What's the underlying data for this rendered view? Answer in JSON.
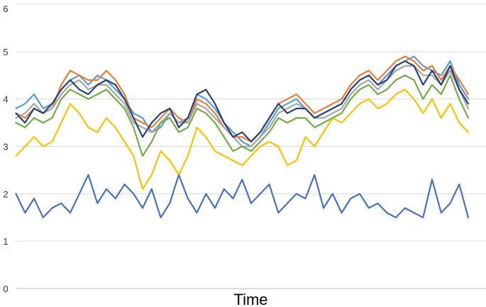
{
  "chart_data": {
    "type": "line",
    "title": "",
    "xlabel": "Time",
    "ylabel": "",
    "ylim": [
      0,
      6
    ],
    "yticks": [
      0,
      1,
      2,
      3,
      4,
      5,
      6
    ],
    "grid": true,
    "legend": "none",
    "x_range": [
      0,
      100
    ],
    "series": [
      {
        "color": "#5b9bd5",
        "x": [
          0,
          2,
          4,
          6,
          8,
          10,
          12,
          14,
          16,
          18,
          20,
          22,
          24,
          26,
          28,
          30,
          32,
          34,
          36,
          38,
          40,
          42,
          44,
          46,
          48,
          50,
          52,
          54,
          56,
          58,
          60,
          62,
          64,
          66,
          68,
          70,
          72,
          74,
          76,
          78,
          80,
          82,
          84,
          86,
          88,
          90,
          92,
          94,
          96,
          98,
          100
        ],
        "values": [
          3.8,
          3.9,
          4.1,
          3.8,
          3.9,
          4.2,
          4.4,
          4.5,
          4.3,
          4.5,
          4.4,
          4.2,
          4.0,
          3.7,
          3.6,
          3.3,
          3.4,
          3.7,
          3.5,
          3.6,
          4.1,
          4.0,
          3.8,
          3.5,
          3.3,
          3.1,
          3.0,
          3.2,
          3.5,
          3.8,
          3.9,
          4.0,
          3.8,
          3.6,
          3.7,
          3.8,
          3.9,
          4.2,
          4.4,
          4.5,
          4.3,
          4.5,
          4.7,
          4.8,
          4.9,
          4.7,
          4.6,
          4.5,
          4.8,
          4.3,
          4.0
        ]
      },
      {
        "color": "#ed7d31",
        "x": [
          0,
          2,
          4,
          6,
          8,
          10,
          12,
          14,
          16,
          18,
          20,
          22,
          24,
          26,
          28,
          30,
          32,
          34,
          36,
          38,
          40,
          42,
          44,
          46,
          48,
          50,
          52,
          54,
          56,
          58,
          60,
          62,
          64,
          66,
          68,
          70,
          72,
          74,
          76,
          78,
          80,
          82,
          84,
          86,
          88,
          90,
          92,
          94,
          96,
          98,
          100
        ],
        "values": [
          3.7,
          3.6,
          3.8,
          3.7,
          3.8,
          4.3,
          4.6,
          4.5,
          4.4,
          4.4,
          4.6,
          4.4,
          4.1,
          3.6,
          3.5,
          3.4,
          3.6,
          3.8,
          3.6,
          3.5,
          4.0,
          3.9,
          3.7,
          3.4,
          3.2,
          3.2,
          3.1,
          3.3,
          3.6,
          3.9,
          4.0,
          4.1,
          3.9,
          3.7,
          3.8,
          3.9,
          4.0,
          4.3,
          4.5,
          4.6,
          4.4,
          4.6,
          4.8,
          4.9,
          4.8,
          4.6,
          4.7,
          4.4,
          4.7,
          4.4,
          4.1
        ]
      },
      {
        "color": "#a5a5a5",
        "x": [
          0,
          2,
          4,
          6,
          8,
          10,
          12,
          14,
          16,
          18,
          20,
          22,
          24,
          26,
          28,
          30,
          32,
          34,
          36,
          38,
          40,
          42,
          44,
          46,
          48,
          50,
          52,
          54,
          56,
          58,
          60,
          62,
          64,
          66,
          68,
          70,
          72,
          74,
          76,
          78,
          80,
          82,
          84,
          86,
          88,
          90,
          92,
          94,
          96,
          98,
          100
        ],
        "values": [
          3.6,
          3.7,
          3.9,
          3.7,
          3.8,
          4.1,
          4.3,
          4.4,
          4.2,
          4.3,
          4.3,
          4.1,
          3.9,
          3.5,
          3.4,
          3.3,
          3.5,
          3.7,
          3.5,
          3.5,
          3.9,
          3.8,
          3.6,
          3.4,
          3.2,
          3.0,
          3.0,
          3.2,
          3.4,
          3.7,
          3.8,
          3.9,
          3.8,
          3.6,
          3.6,
          3.7,
          3.8,
          4.1,
          4.3,
          4.4,
          4.2,
          4.4,
          4.6,
          4.7,
          4.7,
          4.5,
          4.5,
          4.3,
          4.6,
          4.2,
          3.8
        ]
      },
      {
        "color": "#ffc000",
        "x": [
          0,
          2,
          4,
          6,
          8,
          10,
          12,
          14,
          16,
          18,
          20,
          22,
          24,
          26,
          28,
          30,
          32,
          34,
          36,
          38,
          40,
          42,
          44,
          46,
          48,
          50,
          52,
          54,
          56,
          58,
          60,
          62,
          64,
          66,
          68,
          70,
          72,
          74,
          76,
          78,
          80,
          82,
          84,
          86,
          88,
          90,
          92,
          94,
          96,
          98,
          100
        ],
        "values": [
          2.8,
          3.0,
          3.2,
          3.0,
          3.1,
          3.5,
          3.9,
          3.7,
          3.4,
          3.3,
          3.6,
          3.4,
          3.1,
          2.8,
          2.1,
          2.4,
          2.9,
          2.7,
          2.4,
          2.8,
          3.4,
          3.2,
          2.9,
          2.8,
          2.7,
          2.6,
          2.8,
          3.0,
          3.1,
          3.0,
          2.6,
          2.7,
          3.2,
          3.0,
          3.3,
          3.6,
          3.5,
          3.7,
          3.9,
          4.0,
          3.8,
          3.9,
          4.1,
          4.2,
          4.0,
          3.7,
          4.0,
          3.6,
          3.9,
          3.5,
          3.3
        ]
      },
      {
        "color": "#4472c4",
        "x": [
          0,
          2,
          4,
          6,
          8,
          10,
          12,
          14,
          16,
          18,
          20,
          22,
          24,
          26,
          28,
          30,
          32,
          34,
          36,
          38,
          40,
          42,
          44,
          46,
          48,
          50,
          52,
          54,
          56,
          58,
          60,
          62,
          64,
          66,
          68,
          70,
          72,
          74,
          76,
          78,
          80,
          82,
          84,
          86,
          88,
          90,
          92,
          94,
          96,
          98,
          100
        ],
        "values": [
          2.0,
          1.6,
          1.9,
          1.5,
          1.7,
          1.8,
          1.6,
          2.0,
          2.4,
          1.8,
          2.1,
          1.9,
          2.2,
          2.0,
          1.7,
          2.1,
          1.5,
          1.8,
          2.4,
          1.9,
          1.6,
          2.0,
          1.7,
          2.1,
          1.9,
          2.3,
          1.8,
          2.0,
          2.2,
          1.6,
          1.8,
          2.0,
          1.9,
          2.4,
          1.7,
          2.0,
          1.6,
          1.9,
          2.0,
          1.7,
          1.8,
          1.6,
          1.5,
          1.7,
          1.6,
          1.5,
          2.3,
          1.6,
          1.8,
          2.2,
          1.5
        ]
      },
      {
        "color": "#70ad47",
        "x": [
          0,
          2,
          4,
          6,
          8,
          10,
          12,
          14,
          16,
          18,
          20,
          22,
          24,
          26,
          28,
          30,
          32,
          34,
          36,
          38,
          40,
          42,
          44,
          46,
          48,
          50,
          52,
          54,
          56,
          58,
          60,
          62,
          64,
          66,
          68,
          70,
          72,
          74,
          76,
          78,
          80,
          82,
          84,
          86,
          88,
          90,
          92,
          94,
          96,
          98,
          100
        ],
        "values": [
          3.5,
          3.4,
          3.6,
          3.5,
          3.6,
          4.0,
          4.2,
          4.1,
          4.0,
          4.1,
          4.2,
          4.0,
          3.8,
          3.4,
          2.8,
          3.1,
          3.5,
          3.6,
          3.3,
          3.4,
          3.8,
          3.7,
          3.5,
          3.2,
          2.9,
          3.0,
          2.9,
          3.1,
          3.3,
          3.6,
          3.5,
          3.6,
          3.6,
          3.4,
          3.5,
          3.6,
          3.7,
          4.0,
          4.2,
          4.3,
          4.1,
          4.2,
          4.4,
          4.5,
          4.4,
          4.0,
          4.3,
          4.1,
          4.5,
          4.0,
          3.6
        ]
      },
      {
        "color": "#264478",
        "x": [
          0,
          2,
          4,
          6,
          8,
          10,
          12,
          14,
          16,
          18,
          20,
          22,
          24,
          26,
          28,
          30,
          32,
          34,
          36,
          38,
          40,
          42,
          44,
          46,
          48,
          50,
          52,
          54,
          56,
          58,
          60,
          62,
          64,
          66,
          68,
          70,
          72,
          74,
          76,
          78,
          80,
          82,
          84,
          86,
          88,
          90,
          92,
          94,
          96,
          98,
          100
        ],
        "values": [
          3.7,
          3.5,
          3.8,
          3.7,
          3.9,
          4.2,
          4.4,
          4.2,
          4.1,
          4.3,
          4.4,
          4.3,
          4.0,
          3.6,
          3.2,
          3.5,
          3.7,
          3.8,
          3.4,
          3.6,
          4.1,
          4.2,
          3.9,
          3.5,
          3.2,
          3.3,
          3.1,
          3.3,
          3.6,
          3.9,
          3.7,
          3.8,
          3.8,
          3.6,
          3.7,
          3.8,
          3.9,
          4.2,
          4.4,
          4.5,
          4.3,
          4.4,
          4.7,
          4.8,
          4.7,
          4.3,
          4.6,
          4.3,
          4.7,
          4.2,
          3.9
        ]
      }
    ]
  }
}
